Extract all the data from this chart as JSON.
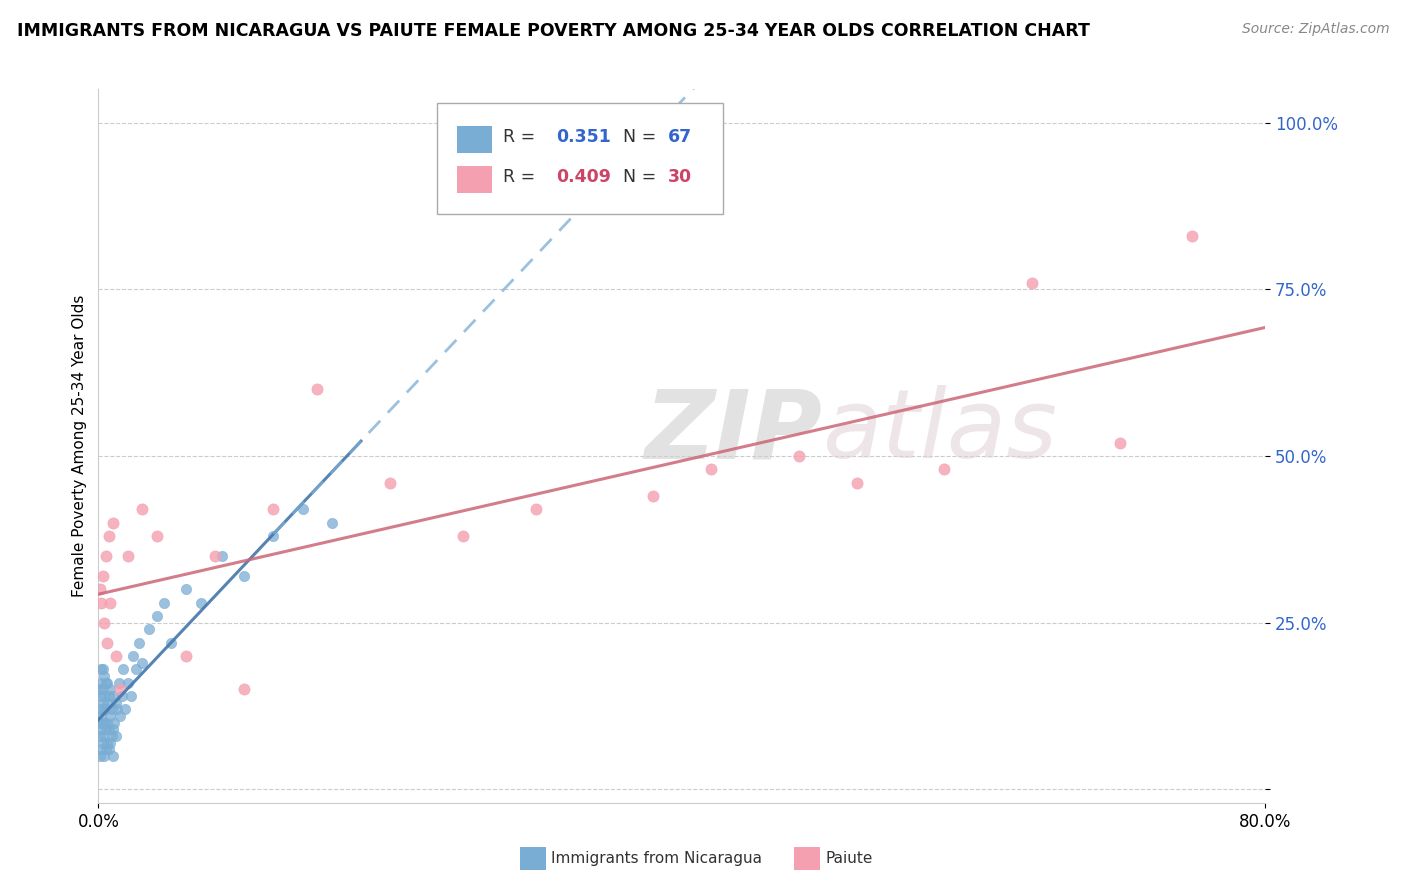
{
  "title": "IMMIGRANTS FROM NICARAGUA VS PAIUTE FEMALE POVERTY AMONG 25-34 YEAR OLDS CORRELATION CHART",
  "source": "Source: ZipAtlas.com",
  "ylabel": "Female Poverty Among 25-34 Year Olds",
  "xlim": [
    0.0,
    0.8
  ],
  "ylim": [
    -0.02,
    1.05
  ],
  "ytick_positions": [
    0.0,
    0.25,
    0.5,
    0.75,
    1.0
  ],
  "ytick_labels": [
    "",
    "25.0%",
    "50.0%",
    "75.0%",
    "100.0%"
  ],
  "xtick_positions": [
    0.0,
    0.8
  ],
  "xtick_labels": [
    "0.0%",
    "80.0%"
  ],
  "color_nicaragua": "#7aadd4",
  "color_paiute": "#f4a0b0",
  "R_nicaragua": 0.351,
  "N_nicaragua": 67,
  "R_paiute": 0.409,
  "N_paiute": 30,
  "watermark": "ZIPatlas",
  "nicaragua_x": [
    0.001,
    0.001,
    0.001,
    0.001,
    0.001,
    0.002,
    0.002,
    0.002,
    0.002,
    0.002,
    0.002,
    0.003,
    0.003,
    0.003,
    0.003,
    0.003,
    0.004,
    0.004,
    0.004,
    0.004,
    0.004,
    0.004,
    0.005,
    0.005,
    0.005,
    0.005,
    0.006,
    0.006,
    0.006,
    0.006,
    0.007,
    0.007,
    0.007,
    0.008,
    0.008,
    0.008,
    0.009,
    0.009,
    0.01,
    0.01,
    0.01,
    0.011,
    0.012,
    0.012,
    0.013,
    0.014,
    0.015,
    0.016,
    0.017,
    0.018,
    0.02,
    0.022,
    0.024,
    0.026,
    0.028,
    0.03,
    0.035,
    0.04,
    0.045,
    0.05,
    0.06,
    0.07,
    0.085,
    0.1,
    0.12,
    0.14,
    0.16
  ],
  "nicaragua_y": [
    0.05,
    0.08,
    0.1,
    0.12,
    0.15,
    0.06,
    0.09,
    0.11,
    0.14,
    0.16,
    0.18,
    0.07,
    0.1,
    0.13,
    0.15,
    0.18,
    0.05,
    0.08,
    0.1,
    0.12,
    0.14,
    0.17,
    0.06,
    0.09,
    0.12,
    0.16,
    0.07,
    0.1,
    0.13,
    0.16,
    0.06,
    0.09,
    0.14,
    0.07,
    0.11,
    0.15,
    0.08,
    0.12,
    0.05,
    0.09,
    0.14,
    0.1,
    0.08,
    0.13,
    0.12,
    0.16,
    0.11,
    0.14,
    0.18,
    0.12,
    0.16,
    0.14,
    0.2,
    0.18,
    0.22,
    0.19,
    0.24,
    0.26,
    0.28,
    0.22,
    0.3,
    0.28,
    0.35,
    0.32,
    0.38,
    0.42,
    0.4
  ],
  "paiute_x": [
    0.001,
    0.002,
    0.003,
    0.004,
    0.005,
    0.006,
    0.007,
    0.008,
    0.01,
    0.012,
    0.015,
    0.02,
    0.03,
    0.04,
    0.06,
    0.08,
    0.1,
    0.12,
    0.15,
    0.2,
    0.25,
    0.3,
    0.38,
    0.42,
    0.48,
    0.52,
    0.58,
    0.64,
    0.7,
    0.75
  ],
  "paiute_y": [
    0.3,
    0.28,
    0.32,
    0.25,
    0.35,
    0.22,
    0.38,
    0.28,
    0.4,
    0.2,
    0.15,
    0.35,
    0.42,
    0.38,
    0.2,
    0.35,
    0.15,
    0.42,
    0.6,
    0.46,
    0.38,
    0.42,
    0.44,
    0.48,
    0.5,
    0.46,
    0.48,
    0.76,
    0.52,
    0.83
  ]
}
